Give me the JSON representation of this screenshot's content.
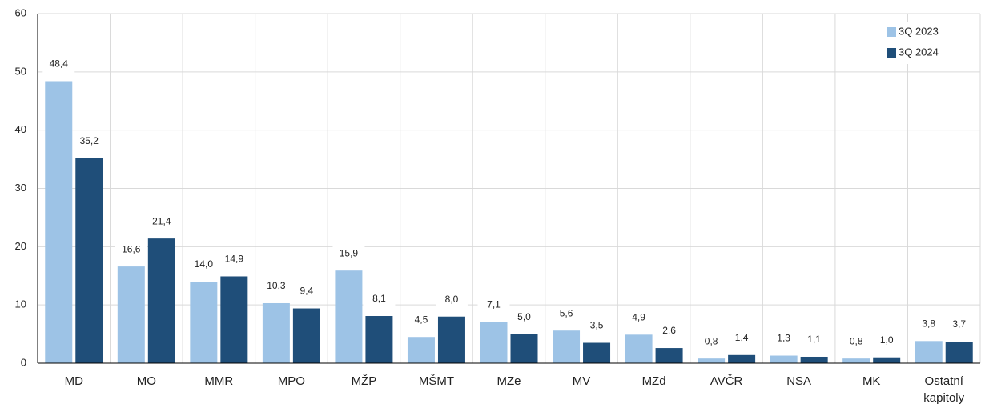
{
  "chart_data": {
    "type": "bar",
    "categories": [
      "MD",
      "MO",
      "MMR",
      "MPO",
      "MŽP",
      "MŠMT",
      "MZe",
      "MV",
      "MZd",
      "AVČR",
      "NSA",
      "MK",
      "Ostatní kapitoly"
    ],
    "series": [
      {
        "name": "3Q 2023",
        "color": "#9dc3e6",
        "values": [
          48.4,
          16.6,
          14.0,
          10.3,
          15.9,
          4.5,
          7.1,
          5.6,
          4.9,
          0.8,
          1.3,
          0.8,
          3.8
        ],
        "value_labels": [
          "48,4",
          "16,6",
          "14,0",
          "10,3",
          "15,9",
          "4,5",
          "7,1",
          "5,6",
          "4,9",
          "0,8",
          "1,3",
          "0,8",
          "3,8"
        ]
      },
      {
        "name": "3Q 2024",
        "color": "#1f4e79",
        "values": [
          35.2,
          21.4,
          14.9,
          9.4,
          8.1,
          8.0,
          5.0,
          3.5,
          2.6,
          1.4,
          1.1,
          1.0,
          3.7
        ],
        "value_labels": [
          "35,2",
          "21,4",
          "14,9",
          "9,4",
          "8,1",
          "8,0",
          "5,0",
          "3,5",
          "2,6",
          "1,4",
          "1,1",
          "1,0",
          "3,7"
        ]
      }
    ],
    "ylim": [
      0,
      60
    ],
    "yticks": [
      0,
      10,
      20,
      30,
      40,
      50,
      60
    ],
    "grid": true,
    "legend": "top-right"
  }
}
